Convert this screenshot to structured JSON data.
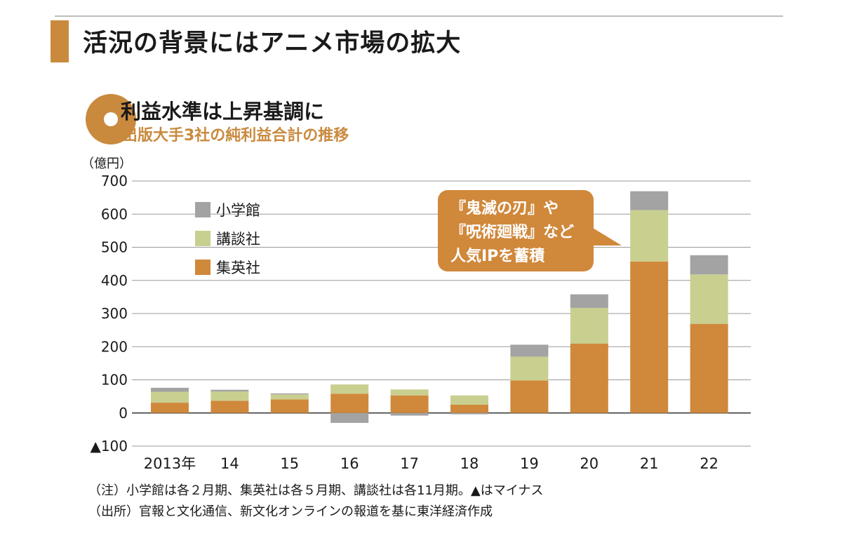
{
  "section_heading": "活況の背景にはアニメ市場の拡大",
  "colors": {
    "accent": "#c98a3e",
    "shueisha": "#d0883b",
    "kodansha": "#c9cf8f",
    "shogakukan": "#a3a3a3"
  },
  "chart_data": {
    "type": "bar",
    "stacked": true,
    "title": "利益水準は上昇基調に",
    "subtitle": "出版大手3社の純利益合計の推移",
    "ylabel": "（億円）",
    "ylim": [
      -100,
      700
    ],
    "yticks": [
      {
        "value": 700,
        "label": "700"
      },
      {
        "value": 600,
        "label": "600"
      },
      {
        "value": 500,
        "label": "500"
      },
      {
        "value": 400,
        "label": "400"
      },
      {
        "value": 300,
        "label": "300"
      },
      {
        "value": 200,
        "label": "200"
      },
      {
        "value": 100,
        "label": "100"
      },
      {
        "value": 0,
        "label": "0"
      },
      {
        "value": -100,
        "label": "▲100"
      }
    ],
    "categories": [
      "2013年",
      "14",
      "15",
      "16",
      "17",
      "18",
      "19",
      "20",
      "21",
      "22"
    ],
    "series": [
      {
        "name": "集英社",
        "color": "#d0883b",
        "values": [
          31,
          37,
          41,
          58,
          53,
          25,
          98,
          209,
          457,
          269
        ]
      },
      {
        "name": "講談社",
        "color": "#c9cf8f",
        "values": [
          33,
          28,
          15,
          28,
          18,
          28,
          72,
          108,
          155,
          149
        ]
      },
      {
        "name": "小学館",
        "color": "#a3a3a3",
        "values": [
          12,
          5,
          3,
          -30,
          -8,
          -4,
          36,
          41,
          57,
          58
        ]
      }
    ],
    "legend_order": [
      "小学館",
      "講談社",
      "集英社"
    ],
    "annotation": {
      "lines": [
        "『鬼滅の刃』や",
        "『呪術廻戦』など",
        "人気IPを蓄積"
      ],
      "target": "21"
    }
  },
  "notes": [
    "（注）小学館は各２月期、集英社は各５月期、講談社は各11月期。▲はマイナス",
    "（出所）官報と文化通信、新文化オンラインの報道を基に東洋経済作成"
  ]
}
